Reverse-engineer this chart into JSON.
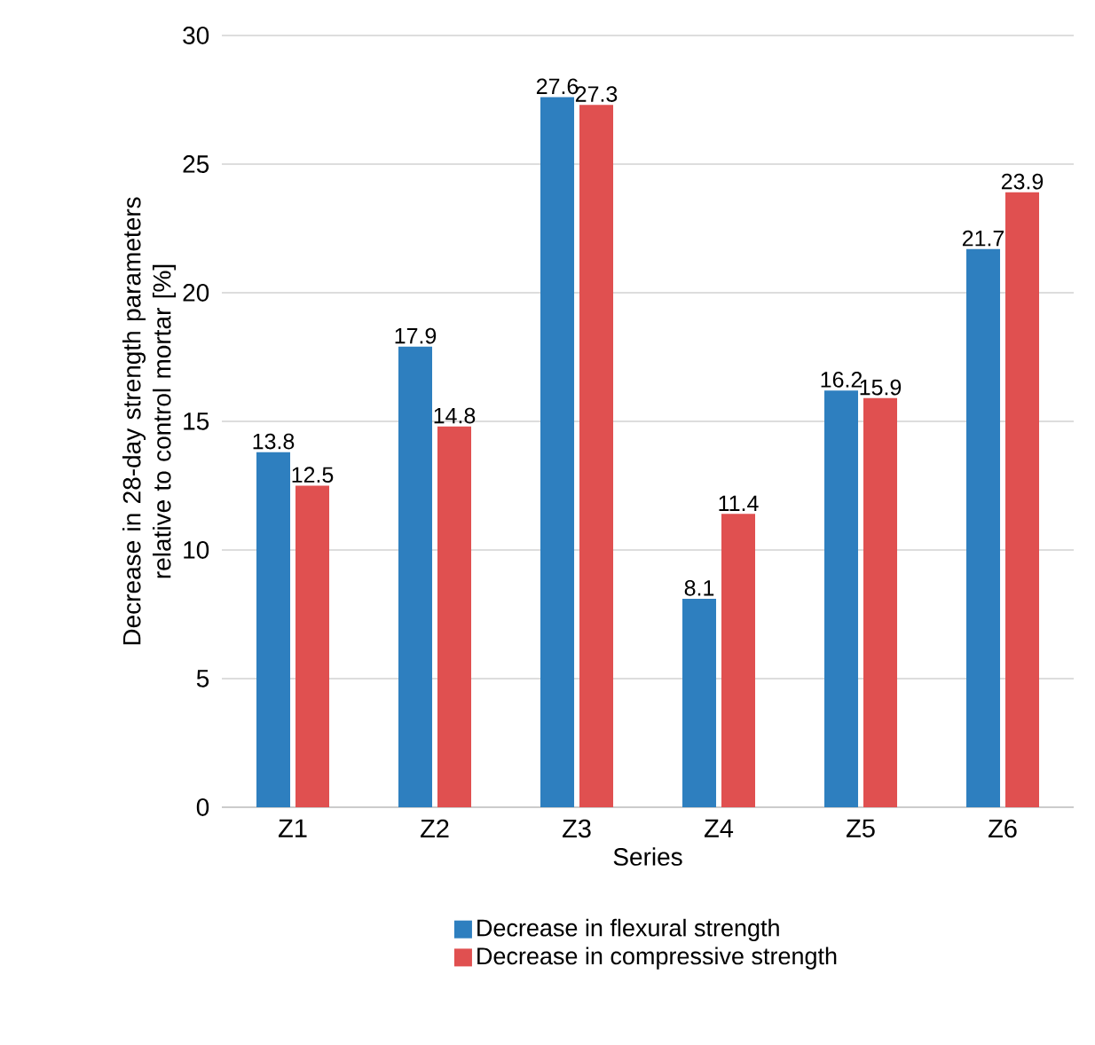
{
  "chart_data": {
    "type": "bar",
    "categories": [
      "Z1",
      "Z2",
      "Z3",
      "Z4",
      "Z5",
      "Z6"
    ],
    "series": [
      {
        "name": "Decrease in flexural strength",
        "color": "#2e7fbf",
        "values": [
          13.8,
          17.9,
          27.6,
          8.1,
          16.2,
          21.7
        ]
      },
      {
        "name": "Decrease in compressive strength",
        "color": "#e05050",
        "values": [
          12.5,
          14.8,
          27.3,
          11.4,
          15.9,
          23.9
        ]
      }
    ],
    "xlabel": "Series",
    "ylabel": "Decrease in 28-day strength parameters relative to control mortar [%]",
    "ylim": [
      0,
      30
    ],
    "yticks": [
      0,
      5,
      10,
      15,
      20,
      25,
      30
    ],
    "grid": "y",
    "legend": "bottom",
    "data_labels": true
  }
}
